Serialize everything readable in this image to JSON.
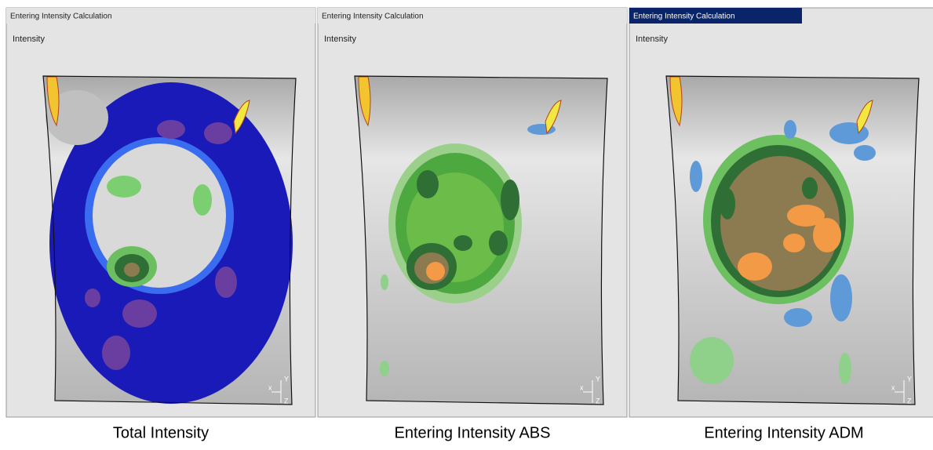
{
  "panels": [
    {
      "window_title": "Entering Intensity Calculation",
      "label": "Intensity",
      "axis_labels": {
        "x": "x",
        "y": "Y",
        "z": "Z"
      },
      "caption": "Total Intensity"
    },
    {
      "window_title": "Entering Intensity Calculation",
      "label": "Intensity",
      "axis_labels": {
        "x": "x",
        "y": "Y",
        "z": "Z"
      },
      "caption": "Entering Intensity ABS"
    },
    {
      "window_title": "Entering Intensity Calculation",
      "label": "Intensity",
      "axis_labels": {
        "x": "x",
        "y": "Y",
        "z": "Z"
      },
      "caption": "Entering Intensity ADM"
    }
  ]
}
